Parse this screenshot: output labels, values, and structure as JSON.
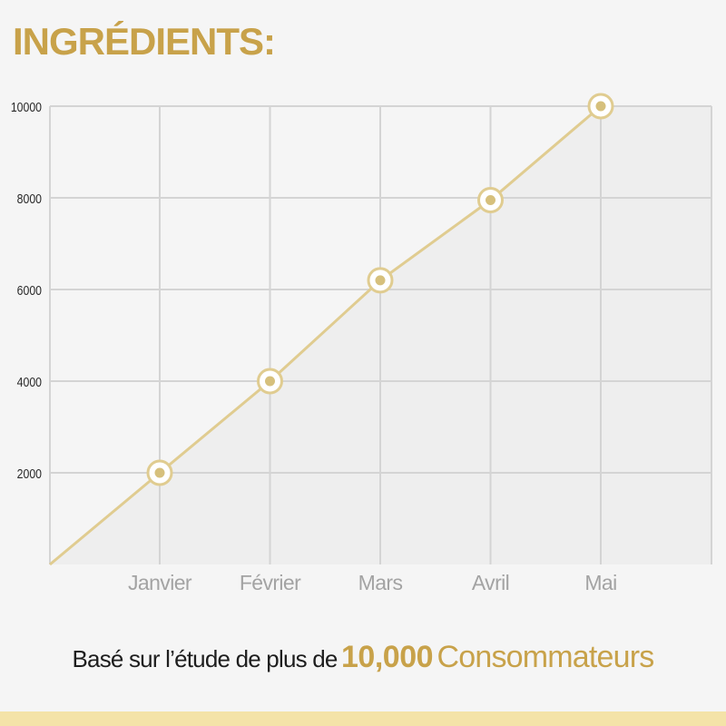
{
  "header": {
    "title": "INGRÉDIENTS:"
  },
  "caption": {
    "lead": "Basé sur l’étude de plus de",
    "number": "10,000",
    "tail": "Consommateurs"
  },
  "colors": {
    "accent": "#c8a24a",
    "line": "#e0cc90",
    "grid": "#d4d4d4",
    "area": "#eeeeee",
    "band": "#f4e3a8"
  },
  "chart_data": {
    "type": "line",
    "categories": [
      "Janvier",
      "Février",
      "Mars",
      "Avril",
      "Mai"
    ],
    "series": [
      {
        "values": [
          2000,
          4000,
          6200,
          7950,
          10000
        ]
      }
    ],
    "y_ticks": [
      "2000",
      "4000",
      "6000",
      "8000",
      "10000"
    ],
    "ylim": [
      0,
      10000
    ],
    "grid": true,
    "legend": "none",
    "area_fill": true
  }
}
